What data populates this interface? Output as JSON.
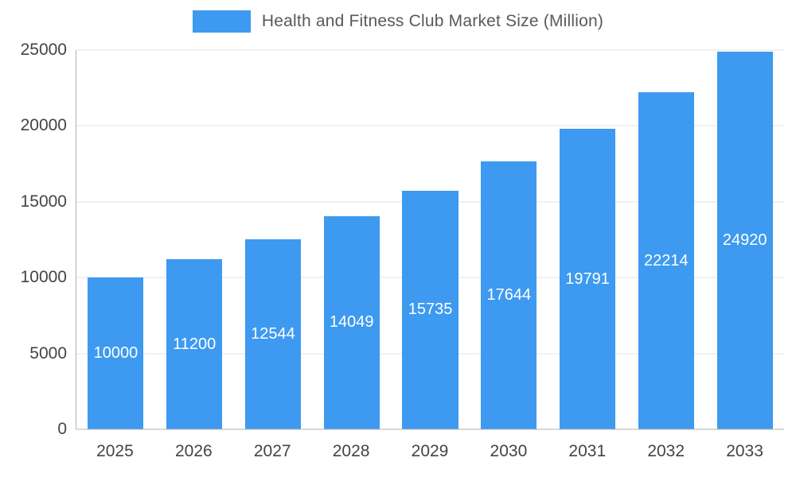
{
  "chart_data": {
    "type": "bar",
    "title": "Health and Fitness Club Market Size (Million)",
    "categories": [
      "2025",
      "2026",
      "2027",
      "2028",
      "2029",
      "2030",
      "2031",
      "2032",
      "2033"
    ],
    "values": [
      10000,
      11200,
      12544,
      14049,
      15735,
      17644,
      19791,
      22214,
      24920
    ],
    "xlabel": "",
    "ylabel": "",
    "ylim": [
      0,
      25000
    ],
    "yticks": [
      0,
      5000,
      10000,
      15000,
      20000,
      25000
    ],
    "grid": true,
    "legend_position": "top-center",
    "bar_color": "#3d9af0",
    "value_label_color": "#ffffff",
    "value_label_position": "inside-center"
  }
}
